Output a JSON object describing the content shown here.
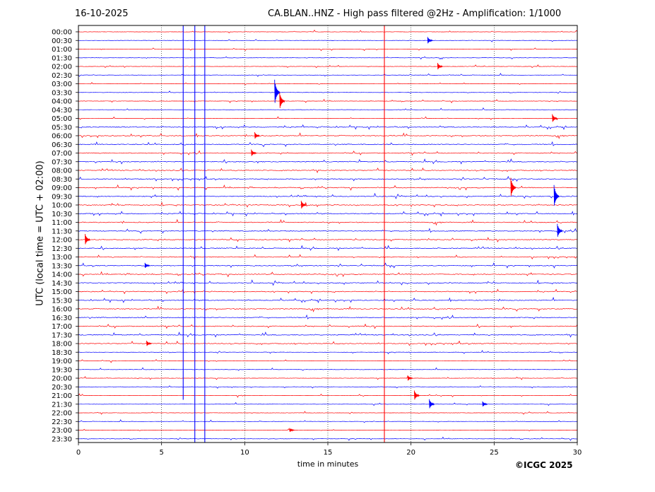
{
  "header": {
    "date": "16-10-2025",
    "title": "CA.BLAN..HNZ - High pass filtered @2Hz - Amplification: 1/1000"
  },
  "footer": {
    "credit": "©ICGC 2025"
  },
  "colors": {
    "trace_a": "#ff0000",
    "trace_b": "#0000ff",
    "frame": "#000000",
    "grid": "#000000"
  },
  "chart_data": {
    "type": "line",
    "title": "CA.BLAN..HNZ - High pass filtered @2Hz - Amplification: 1/1000",
    "xlabel": "time in minutes",
    "ylabel": "UTC (local time = UTC + 02:00)",
    "xlim": [
      0,
      30
    ],
    "xticks": [
      0,
      5,
      10,
      15,
      20,
      25,
      30
    ],
    "grid_x": "dotted vertical lines at each x tick",
    "rows": [
      "00:00",
      "00:30",
      "01:00",
      "01:30",
      "02:00",
      "02:30",
      "03:00",
      "03:30",
      "04:00",
      "04:30",
      "05:00",
      "05:30",
      "06:00",
      "06:30",
      "07:00",
      "07:30",
      "08:00",
      "08:30",
      "09:00",
      "09:30",
      "10:00",
      "10:30",
      "11:00",
      "11:30",
      "12:00",
      "12:30",
      "13:00",
      "13:30",
      "14:00",
      "14:30",
      "15:00",
      "15:30",
      "16:00",
      "16:30",
      "17:00",
      "17:30",
      "18:00",
      "18:30",
      "19:00",
      "19:30",
      "20:00",
      "20:30",
      "21:00",
      "21:30",
      "22:00",
      "22:30",
      "23:00",
      "23:30"
    ],
    "row_colors": "alternating red (first row) and blue",
    "vertical_lines": [
      {
        "x": 6.3,
        "color": "blue",
        "from_row": "00:00",
        "to_row": "21:00"
      },
      {
        "x": 7.0,
        "color": "blue",
        "from_row": "00:00",
        "to_row": "23:30"
      },
      {
        "x": 7.6,
        "color": "blue",
        "from_row": "00:00",
        "to_row": "23:30"
      },
      {
        "x": 18.4,
        "color": "red",
        "from_row": "00:00",
        "to_row": "23:30"
      }
    ],
    "events": [
      {
        "row": "00:30",
        "x": 21.0,
        "amp": 5
      },
      {
        "row": "02:00",
        "x": 21.6,
        "amp": 5
      },
      {
        "row": "03:30",
        "x": 11.8,
        "amp": 18
      },
      {
        "row": "04:00",
        "x": 12.1,
        "amp": 12
      },
      {
        "row": "05:00",
        "x": 28.5,
        "amp": 6
      },
      {
        "row": "06:00",
        "x": 10.6,
        "amp": 5
      },
      {
        "row": "07:00",
        "x": 10.4,
        "amp": 5
      },
      {
        "row": "09:00",
        "x": 26.0,
        "amp": 14
      },
      {
        "row": "09:30",
        "x": 28.6,
        "amp": 16
      },
      {
        "row": "10:00",
        "x": 13.4,
        "amp": 6
      },
      {
        "row": "11:30",
        "x": 28.8,
        "amp": 10
      },
      {
        "row": "12:00",
        "x": 0.4,
        "amp": 8
      },
      {
        "row": "13:30",
        "x": 4.0,
        "amp": 4
      },
      {
        "row": "18:00",
        "x": 4.1,
        "amp": 4
      },
      {
        "row": "20:00",
        "x": 19.8,
        "amp": 4
      },
      {
        "row": "21:00",
        "x": 20.2,
        "amp": 7
      },
      {
        "row": "21:30",
        "x": 21.1,
        "amp": 7
      },
      {
        "row": "21:30",
        "x": 24.3,
        "amp": 4
      },
      {
        "row": "23:00",
        "x": 12.7,
        "amp": 3
      }
    ]
  }
}
